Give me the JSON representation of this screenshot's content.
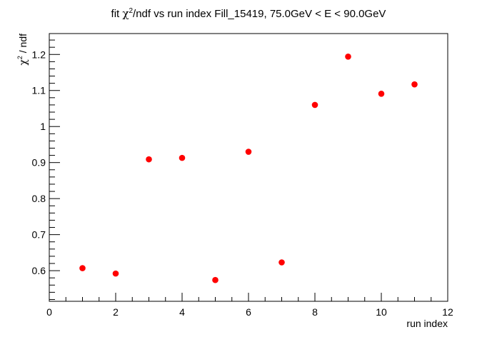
{
  "chart_data": {
    "type": "scatter",
    "title_prefix": "fit ",
    "title_chi": "χ",
    "title_sup": "2",
    "title_suffix": "/ndf vs run index Fill_15419, 75.0GeV < E < 90.0GeV",
    "xlabel": "run index",
    "ylabel_chi": "χ",
    "ylabel_sup": "2",
    "ylabel_suffix": " / ndf",
    "xlim": [
      0,
      12
    ],
    "ylim": [
      0.515,
      1.258
    ],
    "x_ticks": [
      0,
      2,
      4,
      6,
      8,
      10,
      12
    ],
    "x_tick_labels": [
      "0",
      "2",
      "4",
      "6",
      "8",
      "10",
      "12"
    ],
    "y_ticks": [
      0.6,
      0.7,
      0.8,
      0.9,
      1.0,
      1.1,
      1.2
    ],
    "y_tick_labels": [
      "0.6",
      "0.7",
      "0.8",
      "0.9",
      "1",
      "1.1",
      "1.2"
    ],
    "grid": false,
    "marker_color": "#ff0000",
    "x": [
      1,
      2,
      3,
      4,
      5,
      6,
      7,
      8,
      9,
      10,
      11
    ],
    "y": [
      0.607,
      0.592,
      0.909,
      0.913,
      0.574,
      0.93,
      0.623,
      1.06,
      1.194,
      1.091,
      1.117
    ]
  }
}
